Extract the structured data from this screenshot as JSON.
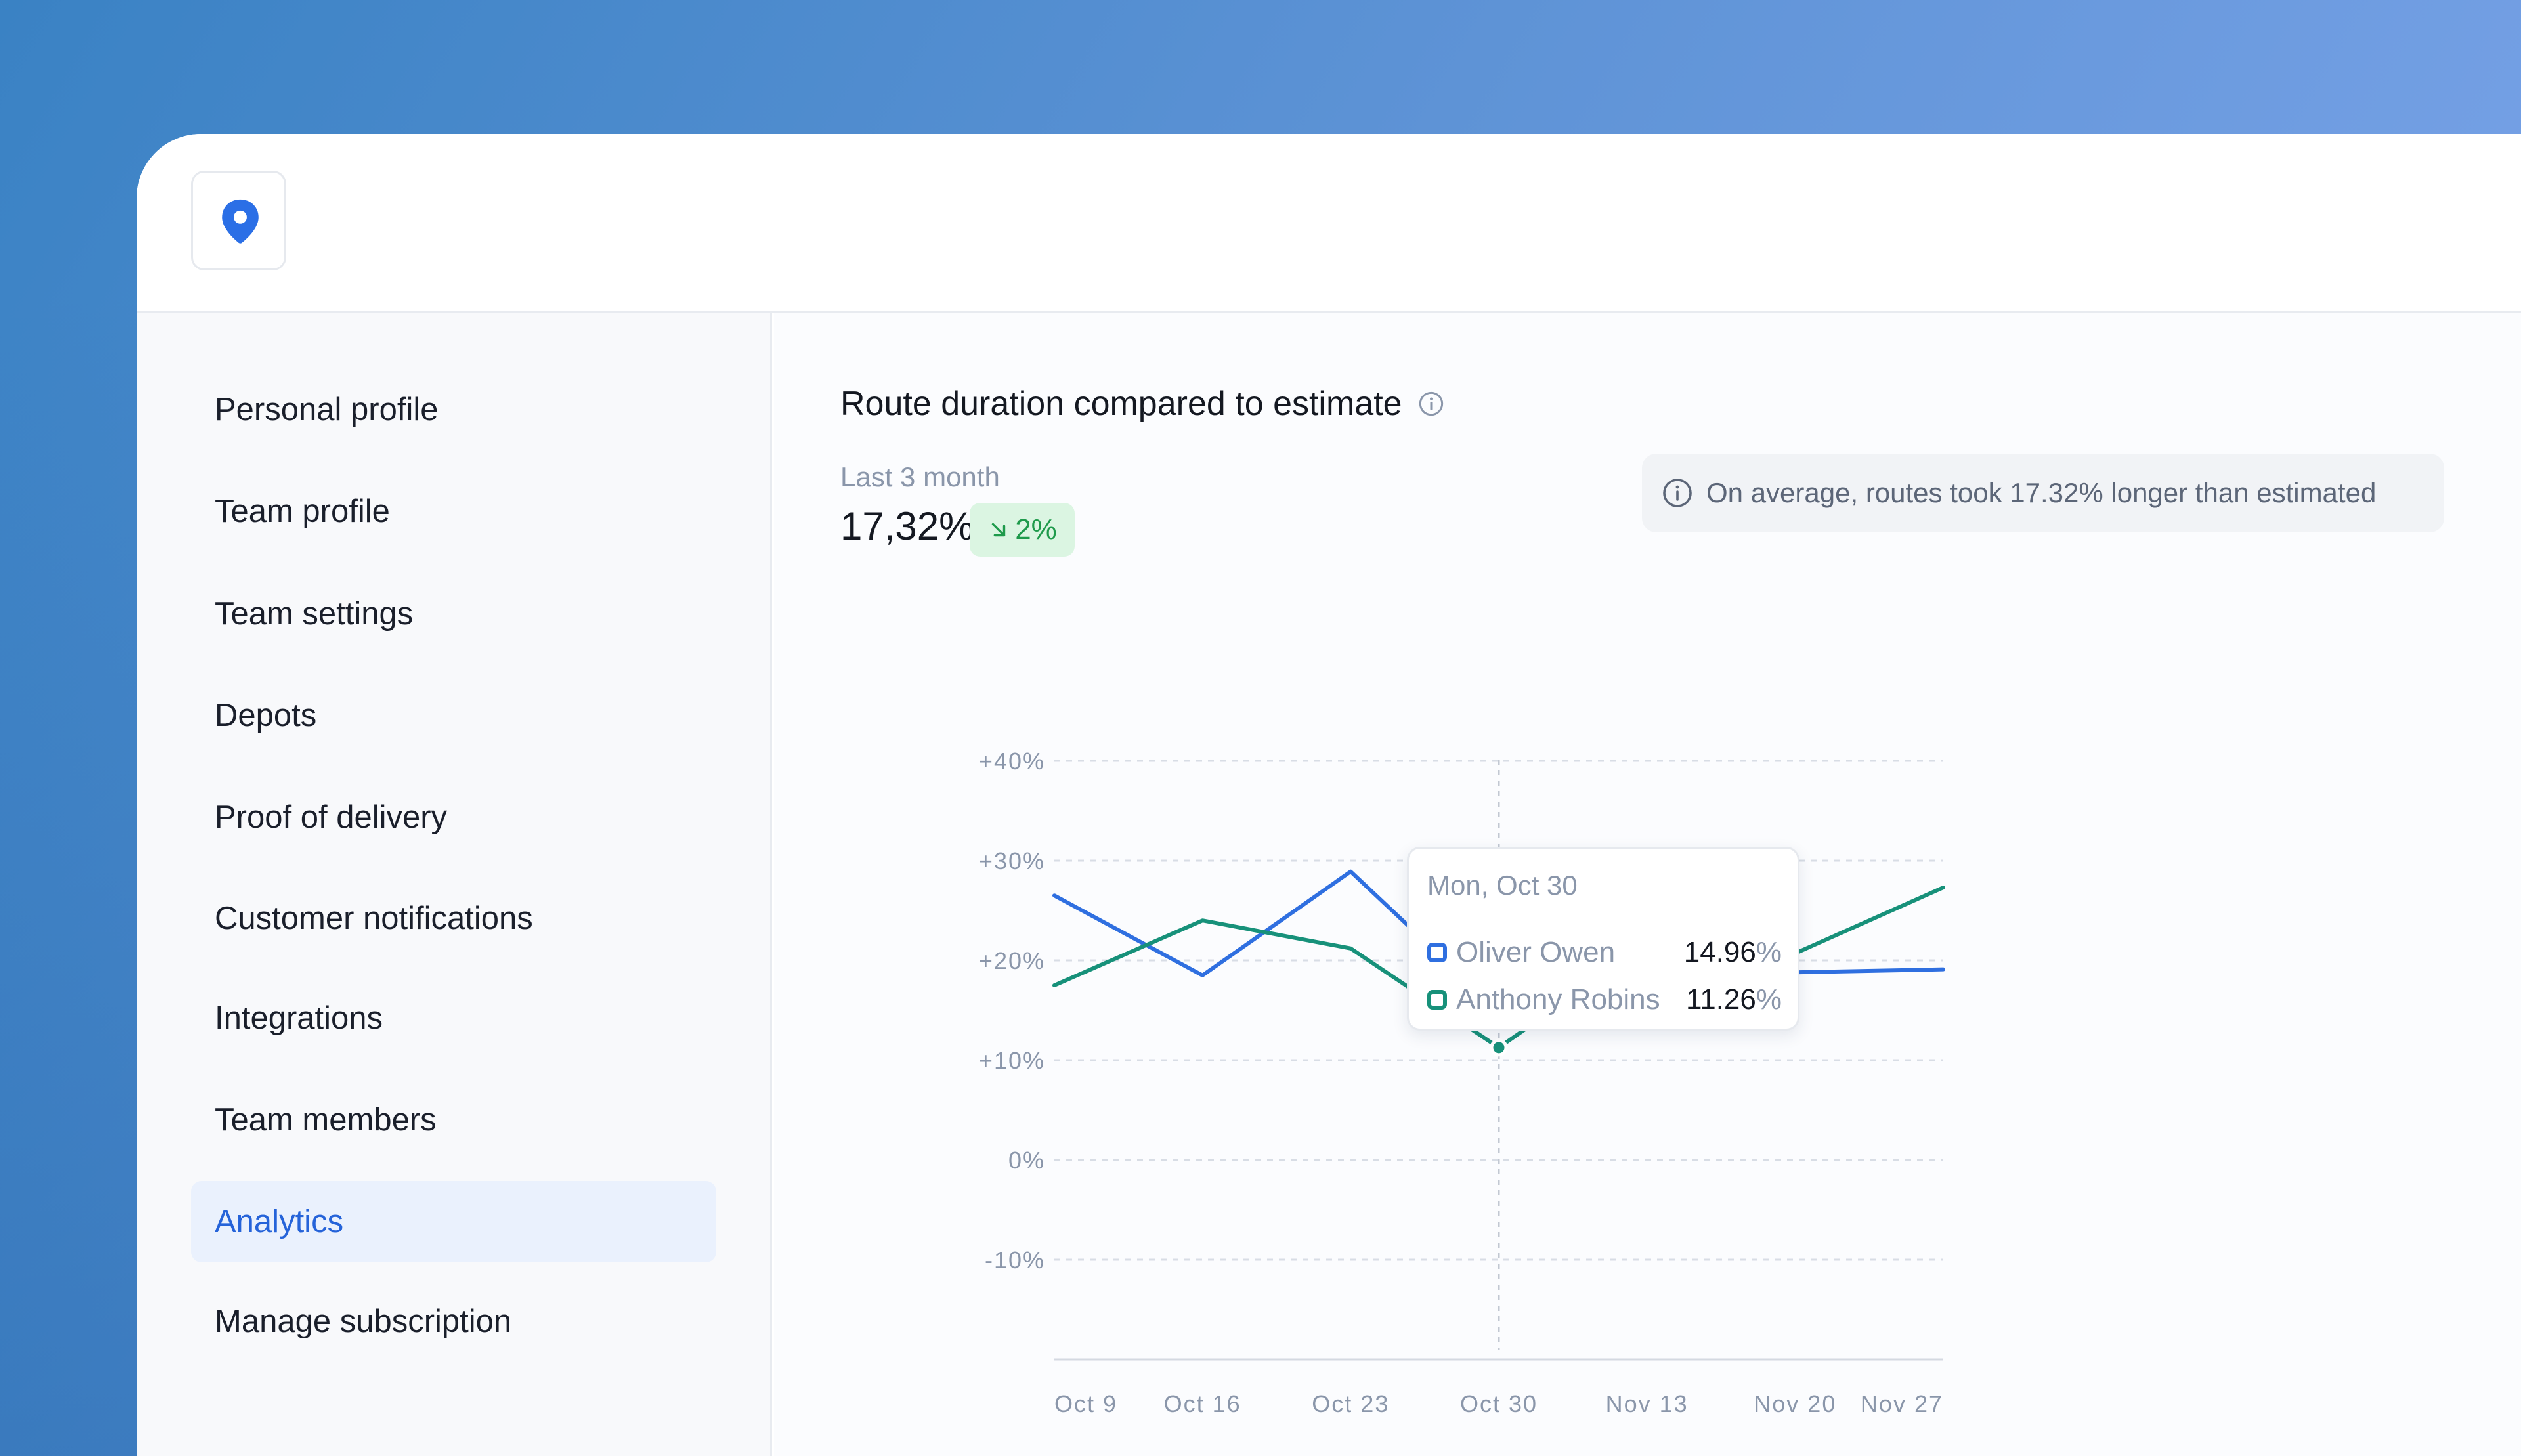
{
  "sidebar": {
    "items": [
      {
        "label": "Personal profile",
        "active": false
      },
      {
        "label": "Team profile",
        "active": false
      },
      {
        "label": "Team settings",
        "active": false
      },
      {
        "label": "Depots",
        "active": false
      },
      {
        "label": "Proof of delivery",
        "active": false
      },
      {
        "label": "Customer notifications",
        "active": false
      },
      {
        "label": "Integrations",
        "active": false
      },
      {
        "label": "Team members",
        "active": false
      },
      {
        "label": "Analytics",
        "active": true
      },
      {
        "label": "Manage subscription",
        "active": false
      }
    ]
  },
  "header": {
    "logo_icon": "map-pin-icon"
  },
  "card": {
    "title": "Route duration compared to estimate",
    "title_icon": "info-icon",
    "period_label": "Last 3 month",
    "value": "17,32%",
    "delta": "2%",
    "delta_icon": "arrow-down-right-icon",
    "note": "On average, routes took 17.32% longer than estimated"
  },
  "tooltip": {
    "date": "Mon, Oct 30",
    "rows": [
      {
        "name": "Oliver Owen",
        "value": "14.96",
        "unit": "%"
      },
      {
        "name": "Anthony Robins",
        "value": "11.26",
        "unit": "%"
      }
    ]
  },
  "colors": {
    "accent": "#2563d9",
    "series_blue": "#2f6fe0",
    "series_green": "#17917a",
    "positive": "#1e9a4b"
  },
  "chart_data": {
    "type": "line",
    "x": [
      "Oct 9",
      "Oct 16",
      "Oct 23",
      "Oct 30",
      "Nov 13",
      "Nov 20",
      "Nov 27"
    ],
    "y_ticks": [
      "+40%",
      "+30%",
      "+20%",
      "+10%",
      "0%",
      "-10%"
    ],
    "ylim": [
      -20,
      40
    ],
    "series": [
      {
        "name": "Oliver Owen",
        "color": "#2f6fe0",
        "values": [
          26.5,
          18.5,
          28.9,
          14.96,
          23.8,
          18.8,
          19.1
        ]
      },
      {
        "name": "Anthony Robins",
        "color": "#17917a",
        "values": [
          17.5,
          24.0,
          21.2,
          11.26,
          21.6,
          20.7,
          27.3
        ]
      }
    ],
    "highlight_x": "Oct 30",
    "grid": true
  }
}
